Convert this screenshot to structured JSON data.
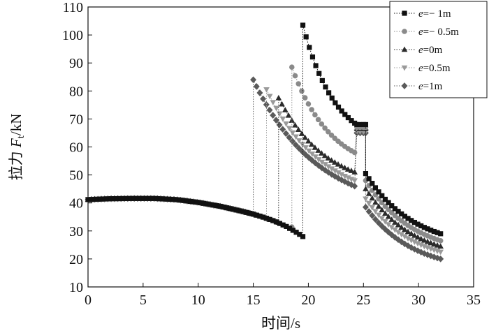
{
  "chart_data": {
    "type": "scatter",
    "xlabel": "时间/s",
    "ylabel": "拉力 Ft/kN",
    "ylabel_parts": {
      "pre": "拉力 ",
      "main": "F",
      "sub": "t",
      "post": "/kN"
    },
    "xlim": [
      0,
      35
    ],
    "ylim": [
      10,
      110
    ],
    "xticks": [
      0,
      5,
      10,
      15,
      20,
      25,
      30,
      35
    ],
    "yticks": [
      10,
      20,
      30,
      40,
      50,
      60,
      70,
      80,
      90,
      100,
      110
    ],
    "grid": false,
    "legend_position": "top-right",
    "common_phase": {
      "x_start": 0,
      "x_end": 19.5,
      "points": [
        [
          0,
          41.2
        ],
        [
          2,
          41.5
        ],
        [
          4,
          41.6
        ],
        [
          6,
          41.6
        ],
        [
          8,
          41.2
        ],
        [
          10,
          40.2
        ],
        [
          12,
          38.8
        ],
        [
          14,
          37.0
        ],
        [
          15,
          36.0
        ],
        [
          16,
          34.8
        ],
        [
          17,
          33.4
        ],
        [
          18,
          31.6
        ],
        [
          19,
          29.3
        ],
        [
          19.5,
          28.0
        ]
      ]
    },
    "series": [
      {
        "name": "e=−1m",
        "legend_italic": "e",
        "legend_rest": "=− 1m",
        "marker": "square",
        "color": "#111111",
        "break_x": 19.5,
        "pre_break_end": 28.0,
        "peak": 103.5,
        "before_jump": 68.5,
        "plateau": 68.0,
        "after_drop": 50.5,
        "end_value": 29.0
      },
      {
        "name": "e=−0.5m",
        "legend_italic": "e",
        "legend_rest": "=− 0.5m",
        "marker": "circle",
        "color": "#8a8a8a",
        "break_x": 18.5,
        "pre_break_end": 31.4,
        "peak": 88.5,
        "before_jump": 58.0,
        "plateau": 67.0,
        "after_drop": 48.0,
        "end_value": 26.5
      },
      {
        "name": "e=0m",
        "legend_italic": "e",
        "legend_rest": "=0m",
        "marker": "triangle-up",
        "color": "#2b2b2b",
        "break_x": 17.3,
        "pre_break_end": 33.0,
        "peak": 77.5,
        "before_jump": 51.0,
        "plateau": 66.5,
        "after_drop": 45.0,
        "end_value": 24.5
      },
      {
        "name": "e=0.5m",
        "legend_italic": "e",
        "legend_rest": "=0.5m",
        "marker": "triangle-down",
        "color": "#9a9a9a",
        "break_x": 16.2,
        "pre_break_end": 34.3,
        "peak": 80.5,
        "before_jump": 48.0,
        "plateau": 65.5,
        "after_drop": 41.5,
        "end_value": 22.5
      },
      {
        "name": "e=1m",
        "legend_italic": "e",
        "legend_rest": "=1m",
        "marker": "diamond",
        "color": "#5a5a5a",
        "break_x": 15.0,
        "pre_break_end": 36.0,
        "peak": 84.0,
        "before_jump": 46.0,
        "plateau": 65.0,
        "after_drop": 38.5,
        "end_value": 20.0
      }
    ],
    "plateau_range": [
      24.2,
      25.2
    ],
    "end_x": 32
  }
}
